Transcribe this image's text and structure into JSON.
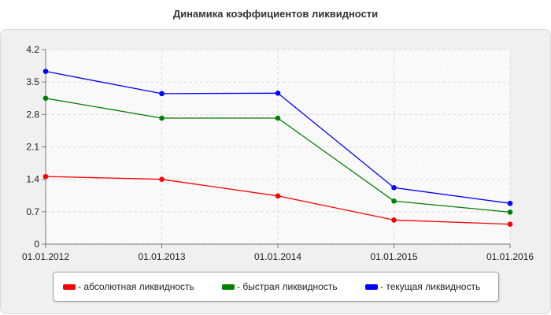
{
  "chart_data": {
    "type": "line",
    "title": "Динамика коэффициентов ликвидности",
    "x": [
      "01.01.2012",
      "01.01.2013",
      "01.01.2014",
      "01.01.2015",
      "01.01.2016"
    ],
    "ylim": [
      0,
      4.2
    ],
    "yticks": [
      "0",
      "0.7",
      "1.4",
      "2.1",
      "2.8",
      "3.5",
      "4.2"
    ],
    "grid": true,
    "legend_position": "bottom",
    "series": [
      {
        "name": "- абсолютная ликвидность",
        "color": "#ff0000",
        "values": [
          1.46,
          1.4,
          1.04,
          0.52,
          0.43
        ]
      },
      {
        "name": "- быстрая ликвидность",
        "color": "#008000",
        "values": [
          3.15,
          2.72,
          2.72,
          0.93,
          0.69
        ]
      },
      {
        "name": "- текущая ликвидность",
        "color": "#0000ff",
        "values": [
          3.73,
          3.25,
          3.26,
          1.22,
          0.88
        ]
      }
    ]
  }
}
